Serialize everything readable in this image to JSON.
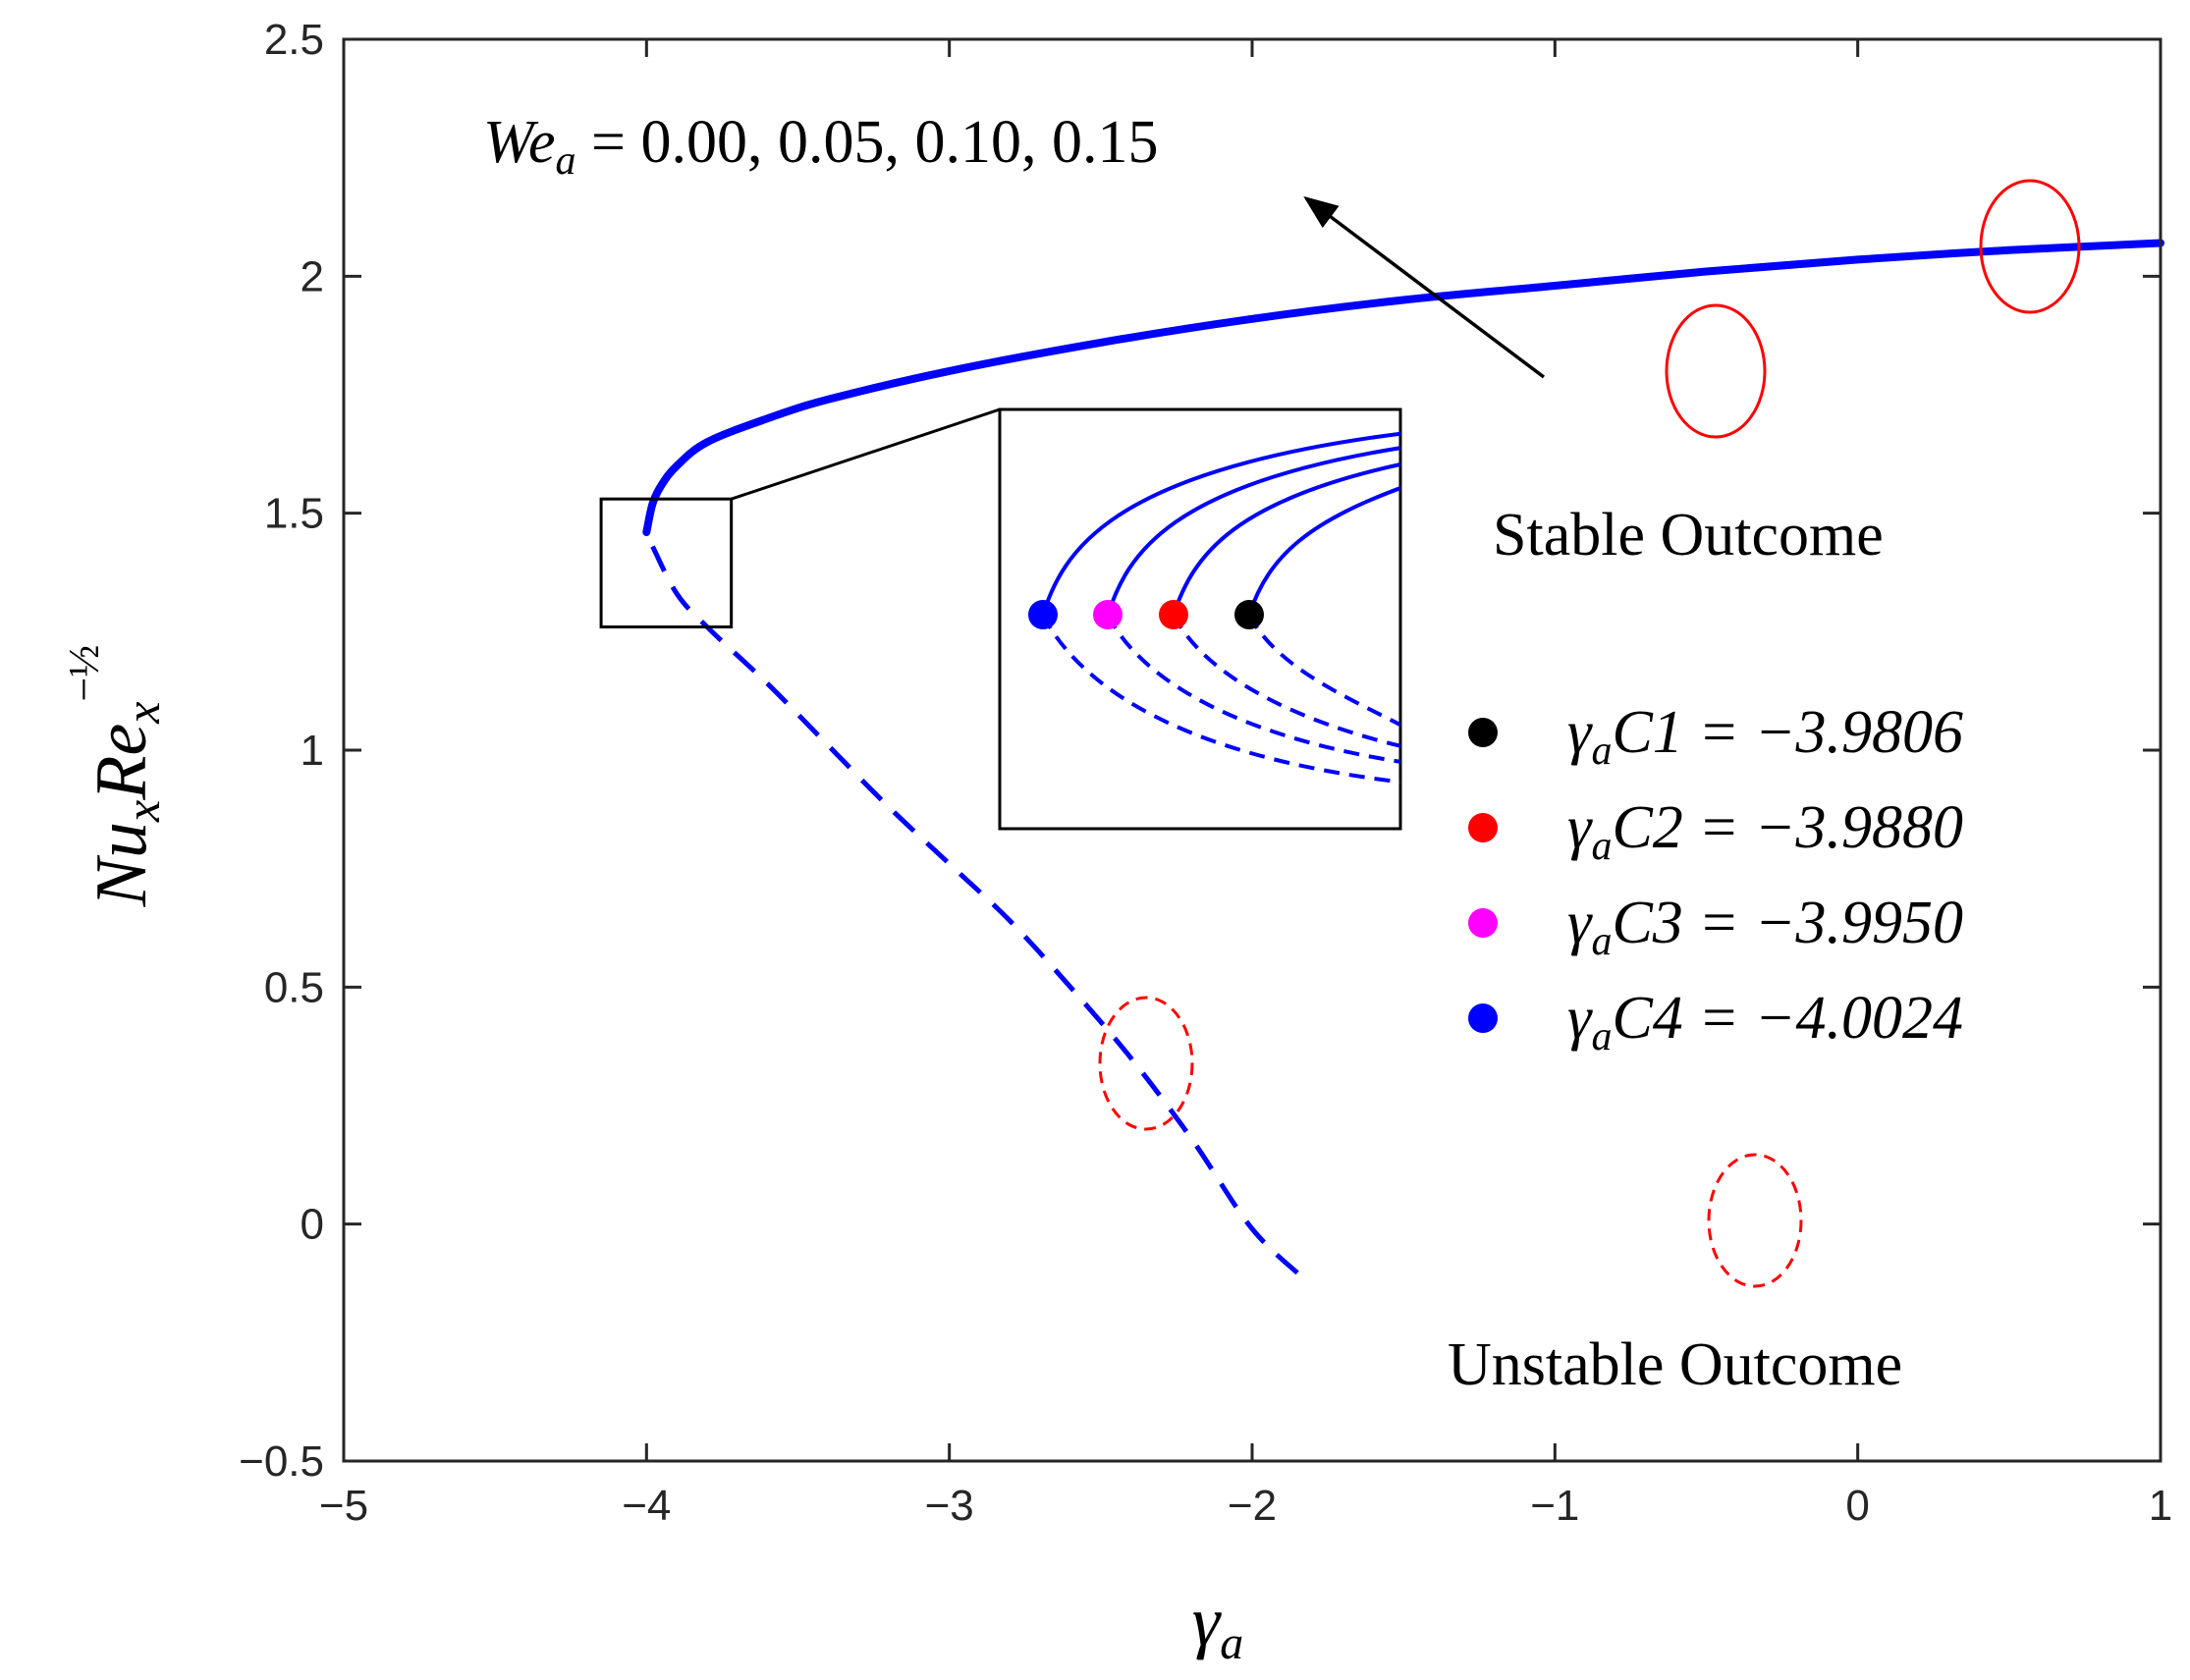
{
  "chart_data": {
    "type": "line",
    "title": "",
    "xlabel": "γa",
    "ylabel": "NuxRex^(-1/2)",
    "xlim": [
      -5,
      1
    ],
    "ylim": [
      -0.5,
      2.5
    ],
    "xticks": [
      -5,
      -4,
      -3,
      -2,
      -1,
      0,
      1
    ],
    "yticks": [
      -0.5,
      0,
      0.5,
      1,
      1.5,
      2,
      2.5
    ],
    "xtick_labels": [
      "−5",
      "−4",
      "−3",
      "−2",
      "−1",
      "0",
      "1"
    ],
    "ytick_labels": [
      "−0.5",
      "0",
      "0.5",
      "1",
      "1.5",
      "2",
      "2.5"
    ],
    "grid": false,
    "series": [
      {
        "name": "Stable branch (We_a = 0.00, 0.05, 0.10, 0.15)",
        "style": "solid",
        "color": "#0000ff",
        "x": [
          -4.0,
          -3.98,
          -3.95,
          -3.9,
          -3.8,
          -3.6,
          -3.4,
          -3.0,
          -2.5,
          -2.0,
          -1.5,
          -1.0,
          -0.5,
          0.0,
          0.5,
          1.0
        ],
        "y": [
          1.46,
          1.52,
          1.56,
          1.6,
          1.65,
          1.7,
          1.74,
          1.8,
          1.86,
          1.91,
          1.95,
          1.98,
          2.01,
          2.035,
          2.055,
          2.07
        ]
      },
      {
        "name": "Unstable branch",
        "style": "dashed",
        "color": "#0000ff",
        "x": [
          -3.98,
          -3.9,
          -3.8,
          -3.6,
          -3.4,
          -3.2,
          -3.0,
          -2.8,
          -2.6,
          -2.4,
          -2.2,
          -2.0,
          -1.82
        ],
        "y": [
          1.43,
          1.33,
          1.26,
          1.14,
          1.01,
          0.88,
          0.76,
          0.64,
          0.5,
          0.35,
          0.18,
          -0.01,
          -0.12
        ]
      }
    ],
    "legend": {
      "position": "right",
      "entries": [
        {
          "label_sym": "γ",
          "label_sub": "a",
          "label_tail": "C1 = −3.9806",
          "color": "#000000"
        },
        {
          "label_sym": "γ",
          "label_sub": "a",
          "label_tail": "C2 = −3.9880",
          "color": "#ff0000"
        },
        {
          "label_sym": "γ",
          "label_sub": "a",
          "label_tail": "C3 = −3.9950",
          "color": "#ff00ff"
        },
        {
          "label_sym": "γ",
          "label_sub": "a",
          "label_tail": "C4 = −4.0024",
          "color": "#0000ff"
        }
      ]
    },
    "annotations": {
      "we_label": "We",
      "we_sub": "a",
      "we_values": " = 0.00, 0.05, 0.10, 0.15",
      "stable": "Stable Outcome",
      "unstable": "Unstable Outcome"
    },
    "critical_points": [
      {
        "name": "C1",
        "color": "#000000"
      },
      {
        "name": "C2",
        "color": "#ff0000"
      },
      {
        "name": "C3",
        "color": "#ff00ff"
      },
      {
        "name": "C4",
        "color": "#0000ff"
      }
    ],
    "inset_zoom_region": {
      "x": [
        -4.15,
        -3.72
      ],
      "y": [
        1.26,
        1.53
      ]
    }
  }
}
